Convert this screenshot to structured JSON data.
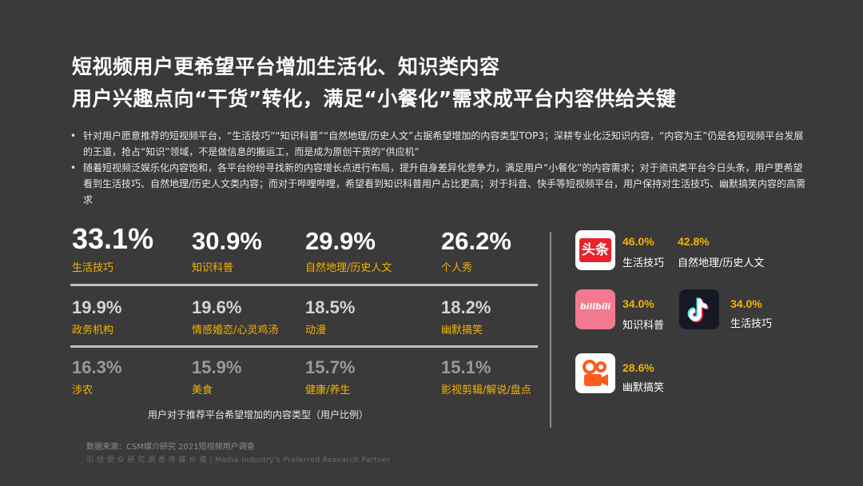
{
  "title_line1": "短视频用户更希望平台增加生活化、知识类内容",
  "title_line2": "用户兴趣点向“干货”转化，满足“小餐化”需求成平台内容供给关键",
  "bullets": [
    "针对用户愿意推荐的短视频平台，“生活技巧”“知识科普”“自然地理/历史人文”占据希望增加的内容类型TOP3；深耕专业化泛知识内容，“内容为王”仍是各短视频平台发展的王道，抢占“知识”领域，不是做信息的搬运工，而是成为原创干货的“供应机”",
    "随着短视频泛娱乐化内容饱和，各平台纷纷寻找新的内容增长点进行布局，提升自身差异化竞争力，满足用户“小餐化”的内容需求；对于资讯类平台今日头条，用户更希望看到生活技巧、自然地理/历史人文类内容；而对于哔哩哔哩，希望看到知识科普用户占比更高；对于抖音、快手等短视频平台，用户保持对生活技巧、幽默搞笑内容的高需求"
  ],
  "bullet_marker": "•",
  "stats": [
    {
      "pct": "33.1%",
      "label": "生活技巧"
    },
    {
      "pct": "30.9%",
      "label": "知识科普"
    },
    {
      "pct": "29.9%",
      "label": "自然地理/历史人文"
    },
    {
      "pct": "26.2%",
      "label": "个人秀"
    },
    {
      "pct": "19.9%",
      "label": "政务机构"
    },
    {
      "pct": "19.6%",
      "label": "情感婚恋/心灵鸡汤"
    },
    {
      "pct": "18.5%",
      "label": "动漫"
    },
    {
      "pct": "18.2%",
      "label": "幽默搞笑"
    },
    {
      "pct": "16.3%",
      "label": "涉农"
    },
    {
      "pct": "15.9%",
      "label": "美食"
    },
    {
      "pct": "15.7%",
      "label": "健康/养生"
    },
    {
      "pct": "15.1%",
      "label": "影视剪辑/解说/盘点"
    }
  ],
  "stats_caption": "用户对于推荐平台希望增加的内容类型（用户比例）",
  "platforms": {
    "toutiao": {
      "icon": "toutiao-logo",
      "icon_text": "头条",
      "pct1": "46.0%",
      "label1": "生活技巧",
      "pct2": "42.8%",
      "label2": "自然地理/历史人文"
    },
    "bilibili": {
      "icon": "bilibili-logo",
      "icon_text": "bilibili",
      "pct": "34.0%",
      "label": "知识科普"
    },
    "douyin": {
      "icon": "douyin-logo",
      "pct": "34.0%",
      "label": "生活技巧"
    },
    "kuaishou": {
      "icon": "kuaishou-logo",
      "pct": "28.6%",
      "label": "幽默搞笑"
    }
  },
  "colors": {
    "background": "#3a3a3a",
    "accent": "#f5b301",
    "toutiao": "#e8232a",
    "bilibili": "#f2798f",
    "douyin": "#161823",
    "kuaishou": "#ff5a1f"
  },
  "source": "数据来源：CSM媒介研究 2021短视频用户调查",
  "slogan": "引 领 受 众 研 究    洞 悉 传 媒 价 值 | Media  Industry's  Preferred  Research  Partner"
}
